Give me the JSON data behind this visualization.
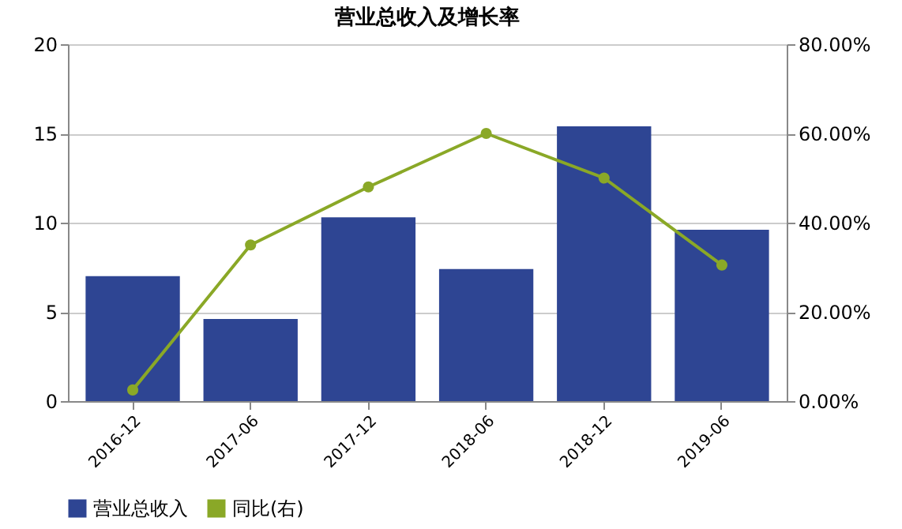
{
  "chart_data": {
    "type": "bar",
    "title": "营业总收入及增长率",
    "categories": [
      "2016-12",
      "2017-06",
      "2017-12",
      "2018-06",
      "2018-12",
      "2019-06"
    ],
    "series": [
      {
        "name": "营业总收入",
        "color": "#2e4593",
        "values": [
          7.0,
          4.6,
          10.3,
          7.4,
          15.4,
          9.6
        ]
      },
      {
        "name": "同比(右)",
        "type": "line",
        "axis": "y2",
        "color": "#8aa827",
        "values": [
          2.5,
          35,
          48,
          60,
          50,
          30.5
        ]
      }
    ],
    "ylim": [
      0,
      20
    ],
    "yticks": [
      0,
      5,
      10,
      15,
      20
    ],
    "y2lim": [
      0,
      80
    ],
    "y2ticks": [
      {
        "value": 0,
        "label": "0.00%"
      },
      {
        "value": 20,
        "label": "20.00%"
      },
      {
        "value": 40,
        "label": "40.00%"
      },
      {
        "value": 60,
        "label": "60.00%"
      },
      {
        "value": 80,
        "label": "80.00%"
      }
    ],
    "grid": "y",
    "legend": "bottom",
    "marker": "circle",
    "line_style": "solid"
  }
}
